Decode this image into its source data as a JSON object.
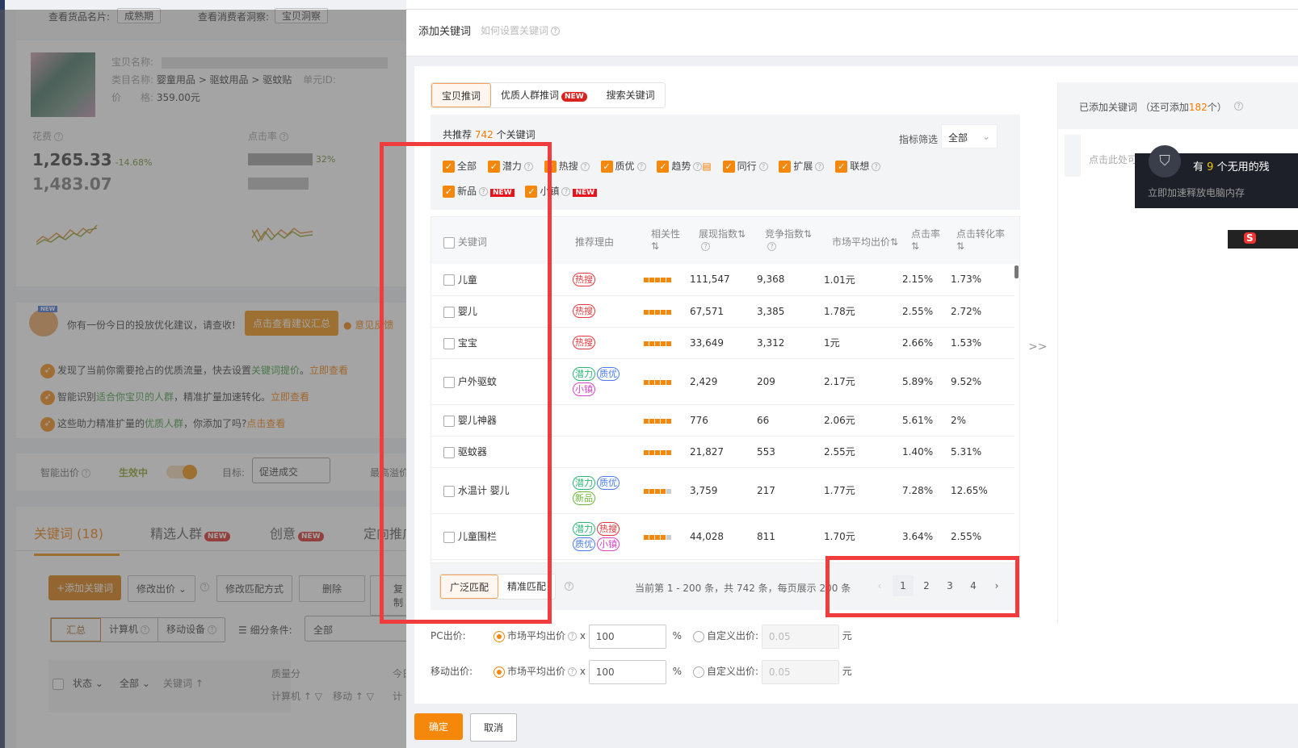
{
  "left": {
    "top_labels": {
      "goods_card": "查看货品名片:",
      "goods_card_btn": "成熟期",
      "consumer": "查看消费者洞察:",
      "consumer_btn": "宝贝洞察"
    },
    "product": {
      "name_label": "宝贝名称:",
      "category_label": "类目名称:",
      "category": "婴童用品 > 驱蚊用品 > 驱蚊贴",
      "unit_label": "单元ID:",
      "price_label": "价　　格:",
      "price": "359.00元"
    },
    "metrics": [
      {
        "label": "花费",
        "value": "1,265.33",
        "change": "-14.68%",
        "prev": "1,483.07"
      },
      {
        "label": "点击率",
        "value": "",
        "change": "32%",
        "prev": ""
      }
    ],
    "advice": {
      "text": "你有一份今日的投放优化建议，请查收!",
      "button": "点击查看建议汇总",
      "feedback": "意见反馈",
      "new_badge": "NEW",
      "items": [
        {
          "pre": "发现了当前你需要抢占的优质流量，快去设置",
          "hl": "关键词提价",
          "post": "。",
          "link": "立即查看"
        },
        {
          "pre": "智能识别",
          "hl": "适合你宝贝的人群",
          "post": "，精准扩量加速转化。",
          "link": "立即查看"
        },
        {
          "pre": "这些助力精准扩量的",
          "hl": "优质人群",
          "post": "，你添加了吗?",
          "link": "点击查看"
        }
      ]
    },
    "smart_bid": {
      "label": "智能出价",
      "status": "生效中",
      "toggle_on": true,
      "goal_label": "目标:",
      "goal": "促进成交",
      "max_label": "最高溢价"
    },
    "tabs": [
      {
        "label": "关键词 (18)",
        "active": true
      },
      {
        "label": "精选人群",
        "badge": "NEW"
      },
      {
        "label": "创意",
        "badge": "NEW"
      },
      {
        "label": "定向推广"
      }
    ],
    "toolbar": {
      "add": "+添加关键词",
      "modify_bid": "修改出价",
      "modify_match": "修改匹配方式",
      "delete": "删除",
      "copy": "复制"
    },
    "devices": [
      "汇总",
      "计算机",
      "移动设备"
    ],
    "segment_label": "细分条件:",
    "segment_value": "全部",
    "table_head": {
      "status": "状态",
      "all": "全部",
      "keyword": "关键词",
      "quality": "质量分",
      "pc": "计算机",
      "mobile": "移动",
      "today": "今日",
      "calc": "计"
    }
  },
  "modal": {
    "title": "添加关键词",
    "help_link": "如何设置关键词",
    "tabs": [
      {
        "label": "宝贝推词",
        "active": true
      },
      {
        "label": "优质人群推词",
        "badge": "NEW"
      },
      {
        "label": "搜索关键词"
      }
    ],
    "summary": {
      "pre": "共推荐",
      "count": "742",
      "post": "个关键词"
    },
    "filter": {
      "label": "指标筛选",
      "value": "全部"
    },
    "checks": [
      {
        "label": "全部"
      },
      {
        "label": "潜力"
      },
      {
        "label": "热搜"
      },
      {
        "label": "质优"
      },
      {
        "label": "趋势"
      },
      {
        "label": "同行"
      },
      {
        "label": "扩展"
      },
      {
        "label": "联想"
      },
      {
        "label": "新品",
        "badge": "NEW"
      },
      {
        "label": "小镇",
        "badge": "NEW"
      }
    ],
    "columns": [
      "关键词",
      "推荐理由",
      "相关性",
      "展现指数",
      "竞争指数",
      "市场平均出价",
      "点击率",
      "点击转化率"
    ],
    "rows": [
      {
        "kw": "儿童",
        "tags": [
          "热搜"
        ],
        "rel": 5,
        "show": "111,547",
        "comp": "9,368",
        "price": "1.01元",
        "ctr": "2.15%",
        "cvr": "1.73%"
      },
      {
        "kw": "婴儿",
        "tags": [
          "热搜"
        ],
        "rel": 5,
        "show": "67,571",
        "comp": "3,385",
        "price": "1.78元",
        "ctr": "2.55%",
        "cvr": "2.72%"
      },
      {
        "kw": "宝宝",
        "tags": [
          "热搜"
        ],
        "rel": 5,
        "show": "33,649",
        "comp": "3,312",
        "price": "1元",
        "ctr": "2.66%",
        "cvr": "1.53%"
      },
      {
        "kw": "户外驱蚊",
        "tags": [
          "潜力",
          "质优",
          "小镇"
        ],
        "rel": 5,
        "show": "2,429",
        "comp": "209",
        "price": "2.17元",
        "ctr": "5.89%",
        "cvr": "9.52%"
      },
      {
        "kw": "婴儿神器",
        "tags": [],
        "rel": 5,
        "show": "776",
        "comp": "66",
        "price": "2.06元",
        "ctr": "5.61%",
        "cvr": "2%"
      },
      {
        "kw": "驱蚊器",
        "tags": [],
        "rel": 5,
        "show": "21,827",
        "comp": "553",
        "price": "2.55元",
        "ctr": "1.40%",
        "cvr": "5.31%"
      },
      {
        "kw": "水温计 婴儿",
        "tags": [
          "潜力",
          "质优",
          "新品"
        ],
        "rel": 4,
        "show": "3,759",
        "comp": "217",
        "price": "1.77元",
        "ctr": "7.28%",
        "cvr": "12.65%"
      },
      {
        "kw": "儿童围栏",
        "tags": [
          "潜力",
          "热搜",
          "质优",
          "小镇"
        ],
        "rel": 4,
        "show": "44,028",
        "comp": "811",
        "price": "1.70元",
        "ctr": "3.64%",
        "cvr": "2.55%"
      }
    ],
    "match": {
      "broad": "广泛匹配",
      "exact": "精准匹配",
      "active": "广泛匹配"
    },
    "pagination": {
      "info": "当前第 1 - 200 条，共 742 条，每页展示 200 条",
      "pages": [
        "1",
        "2",
        "3",
        "4"
      ],
      "current": "1"
    },
    "bids": [
      {
        "label": "PC出价:",
        "market": "市场平均出价",
        "x": "x",
        "value": "100",
        "pct": "%",
        "custom": "自定义出价:",
        "custom_value": "0.05",
        "unit": "元"
      },
      {
        "label": "移动出价:",
        "market": "市场平均出价",
        "x": "x",
        "value": "100",
        "pct": "%",
        "custom": "自定义出价:",
        "custom_value": "0.05",
        "unit": "元"
      }
    ],
    "move_arrow": ">>",
    "added": {
      "pre": "已添加关键词 （还可添加",
      "count": "182",
      "post": "个）",
      "hint": "点击此处可"
    },
    "ok": "确定",
    "cancel": "取消"
  },
  "popup": {
    "pre": "有",
    "count": "9",
    "post": "个无用的残",
    "sub": "立即加速释放电脑内存"
  },
  "colors": {
    "accent": "#f5880a",
    "highlight_box": "#f03c3c"
  }
}
